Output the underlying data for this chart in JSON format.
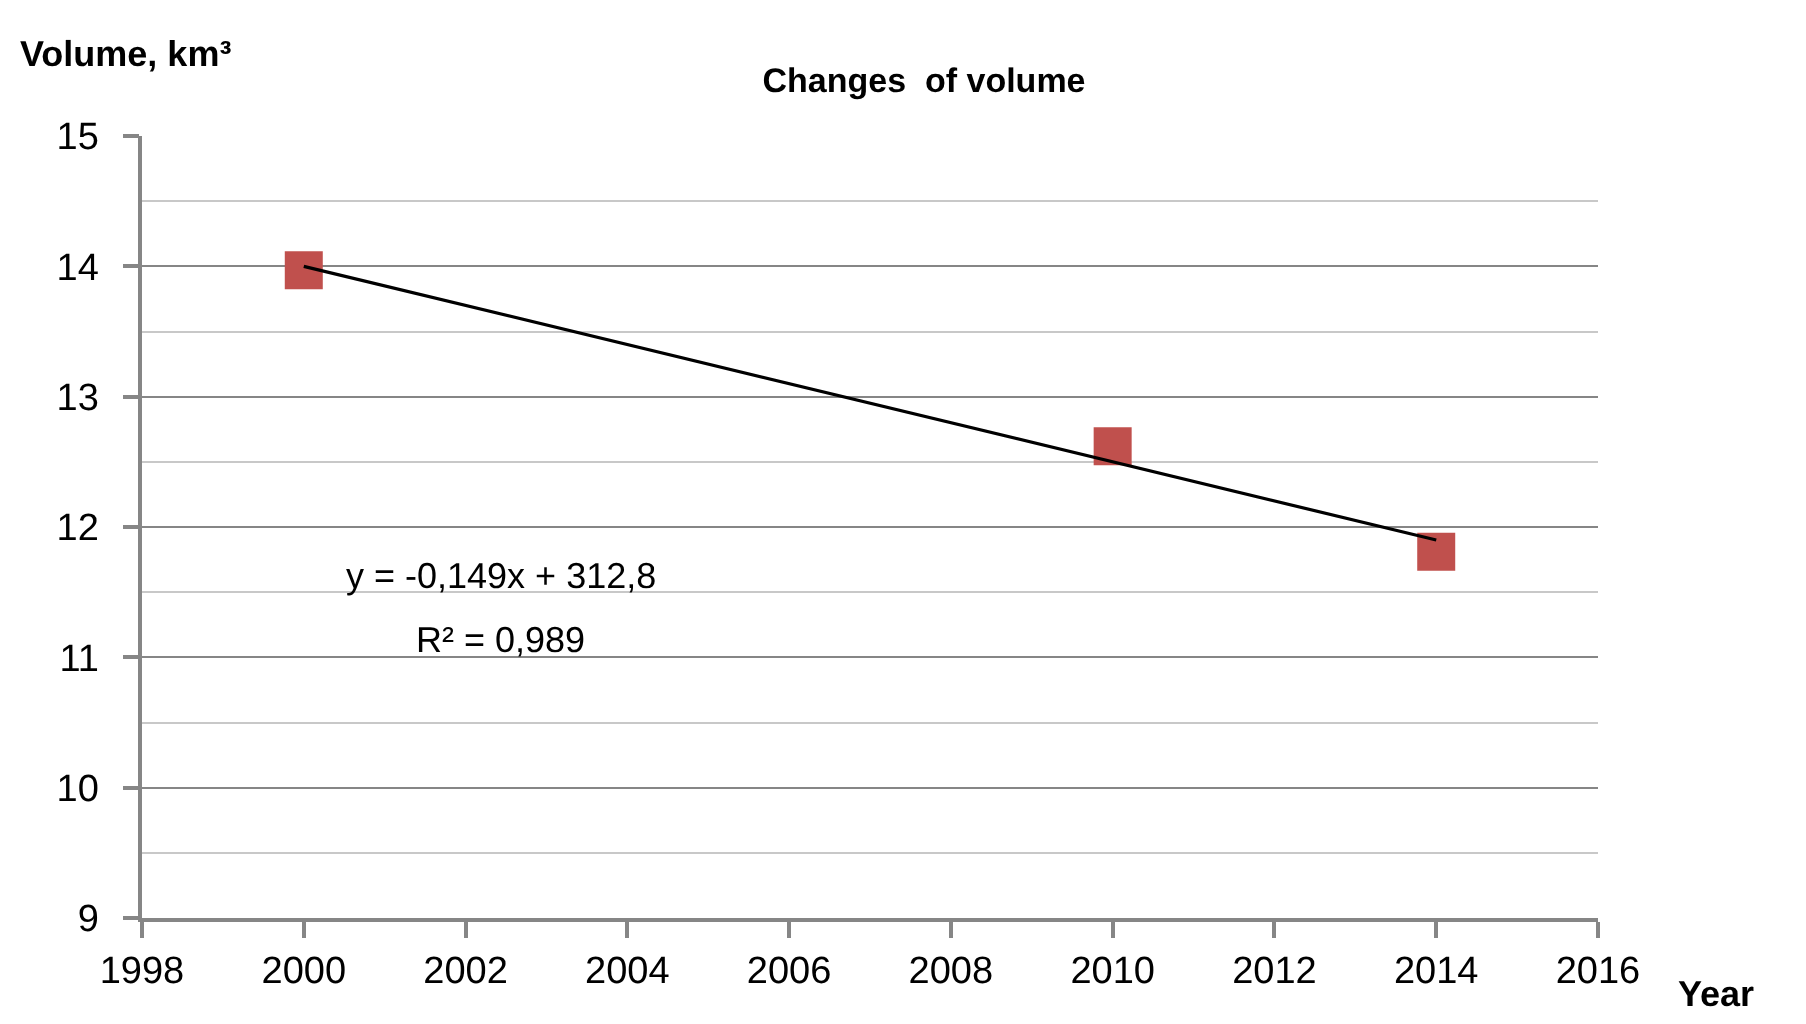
{
  "chart_data": {
    "type": "scatter",
    "title": "Changes  of volume",
    "xlabel": "Year",
    "ylabel": "Volume, km³",
    "annotations": [
      "y = -0,149x + 312,8",
      "R² = 0,989"
    ],
    "x": [
      2000,
      2010,
      2014
    ],
    "series": [
      {
        "color": "#c0504d",
        "marker": "square",
        "values": [
          13.97,
          12.62,
          11.81
        ]
      },
      {
        "type": "line",
        "color": "#000000",
        "marker": "none",
        "x": [
          2000,
          2014
        ],
        "values": [
          14.0,
          11.9
        ]
      }
    ],
    "xlim": [
      1998,
      2016
    ],
    "xticks": [
      1998,
      2000,
      2002,
      2004,
      2006,
      2008,
      2010,
      2012,
      2014,
      2016
    ],
    "ylim": [
      9,
      15
    ],
    "yticks": [
      9,
      {
        "value": 9.5,
        "label": null
      },
      10,
      {
        "value": 10.5,
        "label": null
      },
      11,
      {
        "value": 11.5,
        "label": null
      },
      12,
      {
        "value": 12.5,
        "label": null
      },
      13,
      {
        "value": 13.5,
        "label": null
      },
      14,
      {
        "value": 14.5,
        "label": null
      },
      15
    ],
    "grid": "y"
  }
}
